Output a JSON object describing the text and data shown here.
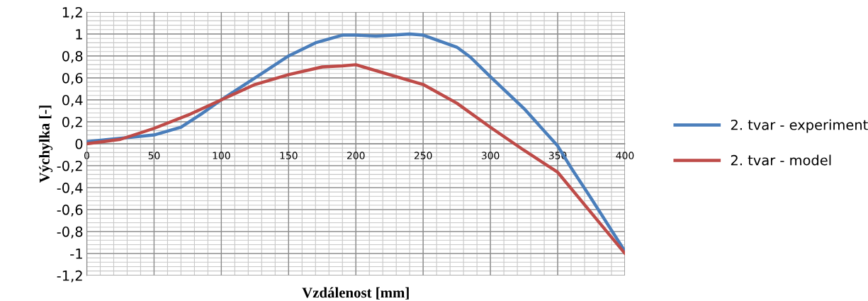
{
  "chart_data": {
    "type": "line",
    "xlabel": "Vzdálenost [mm]",
    "ylabel": "Výchylka [-]",
    "xlim": [
      0,
      400
    ],
    "xticks": [
      0,
      50,
      100,
      150,
      200,
      250,
      300,
      350,
      400
    ],
    "ylim": [
      -1.2,
      1.2
    ],
    "yticks": [
      {
        "value": -1.2,
        "label": "-1,2"
      },
      {
        "value": -1,
        "label": "-1"
      },
      {
        "value": -0.8,
        "label": "-0,8"
      },
      {
        "value": -0.6,
        "label": "-0,6"
      },
      {
        "value": -0.4,
        "label": "-0,4"
      },
      {
        "value": -0.2,
        "label": "-0,2"
      },
      0,
      {
        "value": 0.2,
        "label": "0,2"
      },
      {
        "value": 0.4,
        "label": "0,4"
      },
      {
        "value": 0.6,
        "label": "0,6"
      },
      {
        "value": 0.8,
        "label": "0,8"
      },
      {
        "value": 1,
        "label": "1"
      },
      {
        "value": 1.2,
        "label": "1,2"
      }
    ],
    "grid": true,
    "legend": "right",
    "marker": "none",
    "line_style": "solid",
    "series": [
      {
        "name": "2. tvar - experiment",
        "color": "#4a7ebb",
        "x": [
          0,
          25,
          50,
          70,
          85,
          100,
          115,
          130,
          150,
          170,
          190,
          200,
          215,
          240,
          250,
          275,
          285,
          300,
          325,
          350,
          360,
          375,
          400
        ],
        "values": [
          0.02,
          0.05,
          0.08,
          0.15,
          0.27,
          0.4,
          0.52,
          0.64,
          0.8,
          0.92,
          0.99,
          0.99,
          0.98,
          1.0,
          0.99,
          0.88,
          0.79,
          0.61,
          0.32,
          -0.02,
          -0.22,
          -0.5,
          -0.98
        ]
      },
      {
        "name": "2. tvar - model",
        "color": "#be4b48",
        "x": [
          0,
          25,
          50,
          75,
          100,
          125,
          150,
          175,
          190,
          200,
          250,
          275,
          300,
          325,
          350,
          375,
          400
        ],
        "values": [
          0.0,
          0.04,
          0.14,
          0.26,
          0.4,
          0.54,
          0.63,
          0.7,
          0.71,
          0.72,
          0.54,
          0.37,
          0.15,
          -0.06,
          -0.26,
          -0.63,
          -1.0
        ]
      }
    ]
  }
}
